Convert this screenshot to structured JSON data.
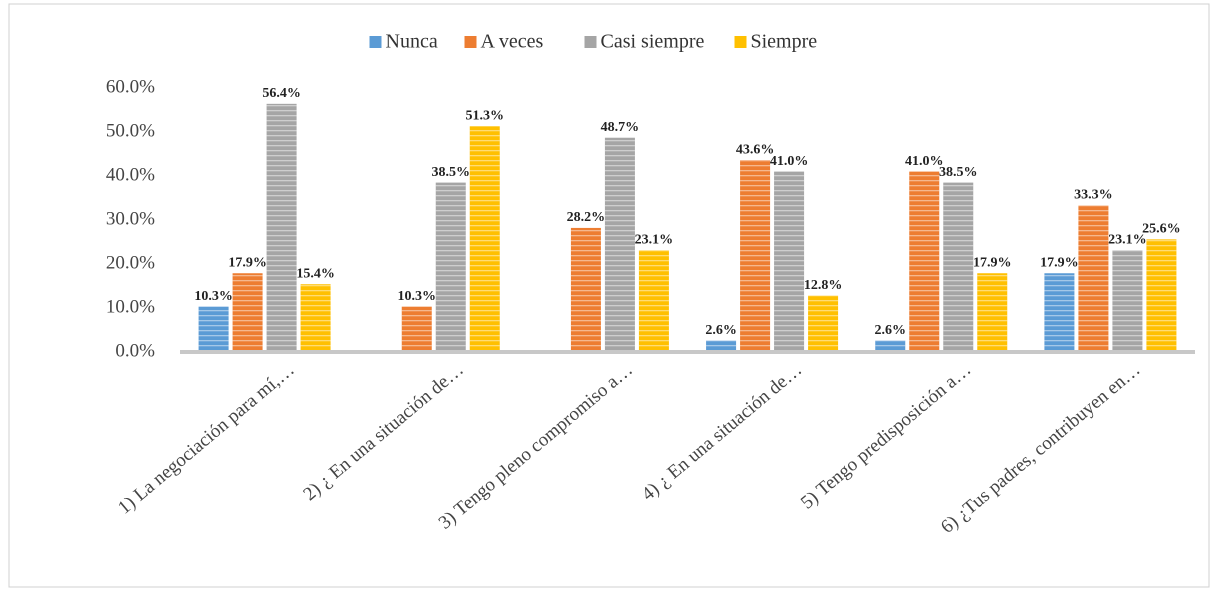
{
  "chart_data": {
    "type": "bar",
    "categories": [
      "1) La negociación para mí,…",
      "2) ¿ En una situación de…",
      "3) Tengo pleno compromiso a…",
      "4) ¿ En una situación de…",
      "5) Tengo predisposición a…",
      "6) ¿Tus padres, contribuyen en…"
    ],
    "series": [
      {
        "name": "Nunca",
        "color": "#5b9bd5",
        "values": [
          10.3,
          null,
          null,
          2.6,
          2.6,
          17.9
        ],
        "value_labels": [
          "10.3%",
          null,
          null,
          "2.6%",
          "2.6%",
          "17.9%"
        ]
      },
      {
        "name": "A veces",
        "color": "#ed7d31",
        "values": [
          17.9,
          10.3,
          28.2,
          43.6,
          41.0,
          33.3
        ],
        "value_labels": [
          "17.9%",
          "10.3%",
          "28.2%",
          "43.6%",
          "41.0%",
          "33.3%"
        ]
      },
      {
        "name": "Casi siempre",
        "color": "#a5a5a5",
        "values": [
          56.4,
          38.5,
          48.7,
          41.0,
          38.5,
          23.1
        ],
        "value_labels": [
          "56.4%",
          "38.5%",
          "48.7%",
          "41.0%",
          "38.5%",
          "23.1%"
        ]
      },
      {
        "name": "Siempre",
        "color": "#ffc000",
        "values": [
          15.4,
          51.3,
          23.1,
          12.8,
          17.9,
          25.6
        ],
        "value_labels": [
          "15.4%",
          "51.3%",
          "23.1%",
          "12.8%",
          "17.9%",
          "25.6%"
        ]
      }
    ],
    "ylim": [
      0,
      60
    ],
    "yticks": [
      {
        "value": 0,
        "label": "0.0%"
      },
      {
        "value": 10,
        "label": "10.0%"
      },
      {
        "value": 20,
        "label": "20.0%"
      },
      {
        "value": 30,
        "label": "30.0%"
      },
      {
        "value": 40,
        "label": "40.0%"
      },
      {
        "value": 50,
        "label": "50.0%"
      },
      {
        "value": 60,
        "label": "60.0%"
      }
    ],
    "legend": "top"
  }
}
